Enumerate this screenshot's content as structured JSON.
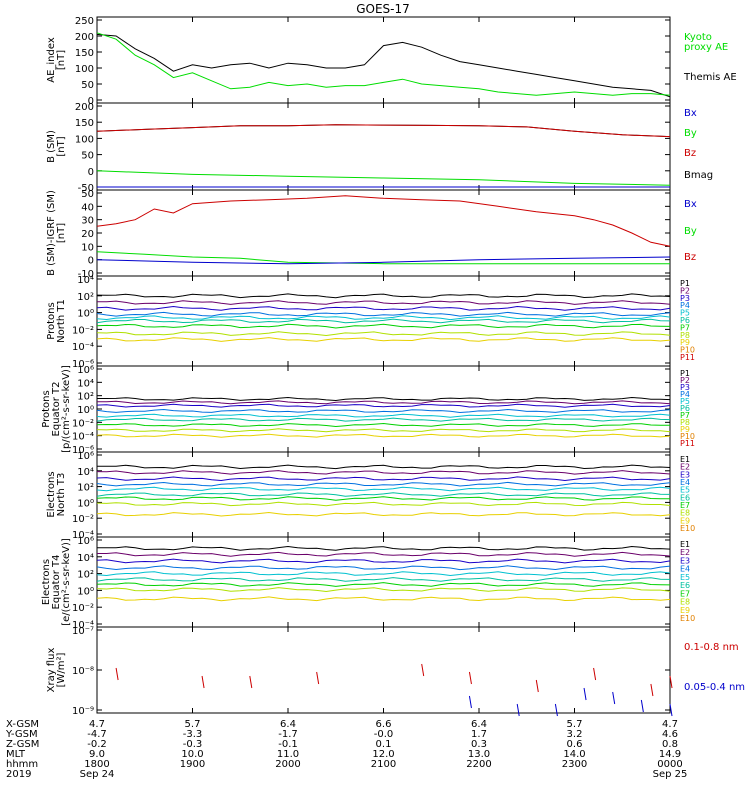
{
  "title": "GOES-17",
  "colors": {
    "black": "#000000",
    "green": "#00dd00",
    "red": "#cc0000",
    "blue": "#0000cc",
    "P": [
      "#000000",
      "#6a006a",
      "#1a00c8",
      "#0070e0",
      "#00c0d0",
      "#00c0a0",
      "#00d000",
      "#b0e000",
      "#e8d000",
      "#e08000",
      "#d00000",
      "#b00000"
    ],
    "E": [
      "#000000",
      "#6a006a",
      "#1a00c8",
      "#0070e0",
      "#00c0d0",
      "#00c0a0",
      "#00d000",
      "#b0e000",
      "#e8d000",
      "#e08000",
      "#d00000",
      "#b00000"
    ]
  },
  "panels": [
    {
      "id": "ae",
      "ylabel": [
        "AE_index",
        "[nT]"
      ],
      "ylim": [
        0,
        250
      ],
      "ticks": [
        "250",
        "200",
        "150",
        "100",
        "50",
        "0"
      ],
      "legend": [
        {
          "text": "Kyoto",
          "color": "#00dd00"
        },
        {
          "text": "proxy AE",
          "color": "#00dd00"
        },
        {
          "text": "Themis AE",
          "color": "#000000"
        }
      ]
    },
    {
      "id": "bsm",
      "ylabel": [
        "B (SM)",
        "[nT]"
      ],
      "ylim": [
        -25,
        200
      ],
      "ticks": [
        "200",
        "150",
        "100",
        "50",
        "0",
        "-50"
      ],
      "legend": [
        {
          "text": "Bx",
          "color": "#0000cc"
        },
        {
          "text": "By",
          "color": "#00dd00"
        },
        {
          "text": "Bz",
          "color": "#cc0000"
        },
        {
          "text": "Bmag",
          "color": "#000000"
        }
      ]
    },
    {
      "id": "bigrf",
      "ylabel": [
        "B (SM)-IGRF (SM)",
        "[nT]"
      ],
      "ylim": [
        -10,
        50
      ],
      "ticks": [
        "50",
        "40",
        "30",
        "20",
        "10",
        "0",
        "-10"
      ],
      "legend": [
        {
          "text": "Bx",
          "color": "#0000cc"
        },
        {
          "text": "By",
          "color": "#00dd00"
        },
        {
          "text": "Bz",
          "color": "#cc0000"
        }
      ]
    },
    {
      "id": "pnt1",
      "ylabel": [
        "Protons",
        "North T1"
      ],
      "ylim": [
        -6,
        4
      ],
      "ticks": [
        "10⁴",
        "10²",
        "10⁰",
        "10⁻²",
        "10⁻⁴",
        "10⁻⁶"
      ],
      "legend": [
        "P1",
        "P2",
        "P3",
        "P4",
        "P5",
        "P6",
        "P7",
        "P8",
        "P9",
        "P10",
        "P11"
      ]
    },
    {
      "id": "pet2",
      "ylabel": [
        "Protons",
        "Equator T2",
        "[p/(cm²-s-sr-keV)]"
      ],
      "ylim": [
        -6,
        6
      ],
      "ticks": [
        "10⁶",
        "10⁴",
        "10²",
        "10⁰",
        "10⁻²",
        "10⁻⁴",
        "10⁻⁶"
      ],
      "legend": [
        "P1",
        "P2",
        "P3",
        "P4",
        "P5",
        "P6",
        "P7",
        "P8",
        "P9",
        "P10",
        "P11"
      ]
    },
    {
      "id": "ent3",
      "ylabel": [
        "Electrons",
        "North T3"
      ],
      "ylim": [
        -4,
        6
      ],
      "ticks": [
        "10⁶",
        "10⁴",
        "10²",
        "10⁰",
        "10⁻²",
        "10⁻⁴"
      ],
      "legend": [
        "E1",
        "E2",
        "E3",
        "E4",
        "E5",
        "E6",
        "E7",
        "E8",
        "E9",
        "E10"
      ]
    },
    {
      "id": "eet4",
      "ylabel": [
        "Electrons",
        "Equator T4",
        "[e/(cm²-s-sr-keV)]"
      ],
      "ylim": [
        -4,
        6
      ],
      "ticks": [
        "10⁶",
        "10⁴",
        "10²",
        "10⁰",
        "10⁻²",
        "10⁻⁴"
      ],
      "legend": [
        "E1",
        "E2",
        "E3",
        "E4",
        "E5",
        "E6",
        "E7",
        "E8",
        "E9",
        "E10"
      ]
    },
    {
      "id": "xray",
      "ylabel": [
        "Xray flux",
        "[W/m²]"
      ],
      "ylim": [
        -9,
        -7
      ],
      "ticks": [
        "10⁻⁷",
        "10⁻⁸",
        "10⁻⁹"
      ],
      "legend": [
        {
          "text": "0.1-0.8 nm",
          "color": "#cc0000"
        },
        {
          "text": "0.05-0.4 nm",
          "color": "#0000cc"
        }
      ]
    }
  ],
  "footer": {
    "row_labels": [
      "X-GSM",
      "Y-GSM",
      "Z-GSM",
      "MLT",
      "hhmm",
      "2019"
    ],
    "columns": [
      [
        "4.7",
        "-4.7",
        "-0.2",
        "9.0",
        "1800",
        "Sep 24"
      ],
      [
        "5.7",
        "-3.3",
        "-0.3",
        "10.0",
        "1900",
        ""
      ],
      [
        "6.4",
        "-1.7",
        "-0.1",
        "11.0",
        "2000",
        ""
      ],
      [
        "6.6",
        "-0.0",
        "0.1",
        "12.0",
        "2100",
        ""
      ],
      [
        "6.4",
        "1.7",
        "0.3",
        "13.0",
        "2200",
        ""
      ],
      [
        "5.7",
        "3.2",
        "0.6",
        "14.0",
        "2300",
        ""
      ],
      [
        "4.7",
        "4.6",
        "0.8",
        "14.9",
        "0000",
        "Sep 25"
      ]
    ]
  },
  "chart_data": {
    "type": "line",
    "x_hours": [
      18,
      19,
      20,
      21,
      22,
      23,
      24
    ],
    "x_tick_labels": [
      "1800",
      "1900",
      "2000",
      "2100",
      "2200",
      "2300",
      "0000"
    ],
    "ae": {
      "themis": [
        [
          18.0,
          205
        ],
        [
          18.2,
          200
        ],
        [
          18.4,
          160
        ],
        [
          18.6,
          130
        ],
        [
          18.8,
          90
        ],
        [
          19.0,
          110
        ],
        [
          19.2,
          100
        ],
        [
          19.4,
          110
        ],
        [
          19.6,
          115
        ],
        [
          19.8,
          100
        ],
        [
          20.0,
          115
        ],
        [
          20.2,
          110
        ],
        [
          20.4,
          100
        ],
        [
          20.6,
          100
        ],
        [
          20.8,
          110
        ],
        [
          21.0,
          170
        ],
        [
          21.2,
          180
        ],
        [
          21.4,
          165
        ],
        [
          21.6,
          140
        ],
        [
          21.8,
          120
        ],
        [
          22.0,
          110
        ],
        [
          22.2,
          100
        ],
        [
          22.4,
          90
        ],
        [
          22.6,
          80
        ],
        [
          22.8,
          70
        ],
        [
          23.0,
          60
        ],
        [
          23.2,
          50
        ],
        [
          23.4,
          40
        ],
        [
          23.6,
          35
        ],
        [
          23.8,
          30
        ],
        [
          24.0,
          10
        ]
      ],
      "kyoto": [
        [
          18.0,
          210
        ],
        [
          18.2,
          190
        ],
        [
          18.4,
          140
        ],
        [
          18.6,
          110
        ],
        [
          18.8,
          70
        ],
        [
          19.0,
          85
        ],
        [
          19.2,
          60
        ],
        [
          19.4,
          35
        ],
        [
          19.6,
          40
        ],
        [
          19.8,
          55
        ],
        [
          20.0,
          45
        ],
        [
          20.2,
          50
        ],
        [
          20.4,
          40
        ],
        [
          20.6,
          45
        ],
        [
          20.8,
          45
        ],
        [
          21.0,
          55
        ],
        [
          21.2,
          65
        ],
        [
          21.4,
          50
        ],
        [
          21.6,
          45
        ],
        [
          21.8,
          40
        ],
        [
          22.0,
          35
        ],
        [
          22.2,
          25
        ],
        [
          22.4,
          20
        ],
        [
          22.6,
          15
        ],
        [
          22.8,
          20
        ],
        [
          23.0,
          25
        ],
        [
          23.2,
          20
        ],
        [
          23.4,
          15
        ],
        [
          23.6,
          20
        ],
        [
          23.8,
          20
        ],
        [
          24.0,
          15
        ]
      ]
    },
    "b_sm": {
      "Bx": [
        [
          18,
          -25
        ],
        [
          24,
          -25
        ]
      ],
      "By": [
        [
          18,
          20
        ],
        [
          19,
          10
        ],
        [
          20,
          5
        ],
        [
          21,
          0
        ],
        [
          22,
          -5
        ],
        [
          23,
          -15
        ],
        [
          24,
          -20
        ]
      ],
      "Bz": [
        [
          18,
          130
        ],
        [
          18.5,
          135
        ],
        [
          19,
          140
        ],
        [
          19.5,
          145
        ],
        [
          20,
          145
        ],
        [
          20.5,
          148
        ],
        [
          21,
          147
        ],
        [
          21.5,
          146
        ],
        [
          22,
          145
        ],
        [
          22.5,
          142
        ],
        [
          23,
          130
        ],
        [
          23.5,
          120
        ],
        [
          24,
          115
        ]
      ],
      "Bmag": [
        [
          18,
          130
        ],
        [
          18.5,
          135
        ],
        [
          19,
          140
        ],
        [
          19.5,
          145
        ],
        [
          20,
          145
        ],
        [
          20.5,
          148
        ],
        [
          21,
          147
        ],
        [
          21.5,
          146
        ],
        [
          22,
          145
        ],
        [
          22.5,
          142
        ],
        [
          23,
          130
        ],
        [
          23.5,
          120
        ],
        [
          24,
          115
        ]
      ]
    },
    "b_igrf": {
      "Bx": [
        [
          18,
          0
        ],
        [
          19,
          -2
        ],
        [
          20,
          -3
        ],
        [
          21,
          -2
        ],
        [
          22,
          0
        ],
        [
          23,
          1
        ],
        [
          24,
          2
        ]
      ],
      "By": [
        [
          18,
          6
        ],
        [
          18.5,
          4
        ],
        [
          19,
          2
        ],
        [
          19.5,
          1
        ],
        [
          20,
          -2
        ],
        [
          21,
          -3
        ],
        [
          22,
          -3
        ],
        [
          23,
          -3
        ],
        [
          24,
          -3
        ]
      ],
      "Bz": [
        [
          18,
          25
        ],
        [
          18.2,
          27
        ],
        [
          18.4,
          30
        ],
        [
          18.6,
          38
        ],
        [
          18.8,
          35
        ],
        [
          19.0,
          42
        ],
        [
          19.4,
          44
        ],
        [
          19.8,
          45
        ],
        [
          20.2,
          46
        ],
        [
          20.6,
          48
        ],
        [
          21.0,
          46
        ],
        [
          21.4,
          45
        ],
        [
          21.8,
          44
        ],
        [
          22.2,
          40
        ],
        [
          22.6,
          36
        ],
        [
          23.0,
          33
        ],
        [
          23.2,
          30
        ],
        [
          23.4,
          26
        ],
        [
          23.6,
          20
        ],
        [
          23.8,
          13
        ],
        [
          24.0,
          10
        ]
      ]
    },
    "protons_north_t1_log10": [
      2.0,
      1.2,
      0.5,
      -0.2,
      -0.6,
      -1.0,
      -1.6,
      -2.5,
      -3.2
    ],
    "protons_equator_t2_log10": [
      1.5,
      1.0,
      0.5,
      -0.3,
      -1.0,
      -1.6,
      -2.4,
      -3.2,
      -4.0
    ],
    "electrons_north_t3_log10": [
      4.5,
      3.8,
      3.0,
      2.3,
      1.7,
      1.0,
      0.5,
      -0.2,
      -1.5
    ],
    "electrons_equator_t4_log10": [
      5.0,
      4.3,
      3.5,
      2.7,
      2.0,
      1.3,
      0.7,
      0.1,
      -1.0
    ],
    "xray_log10": {
      "long": [
        [
          18.2,
          -8.1
        ],
        [
          19.1,
          -8.3
        ],
        [
          19.6,
          -8.3
        ],
        [
          20.3,
          -8.2
        ],
        [
          21.4,
          -8.0
        ],
        [
          21.9,
          -8.2
        ],
        [
          22.6,
          -8.4
        ],
        [
          23.2,
          -8.1
        ],
        [
          23.8,
          -8.5
        ],
        [
          24.0,
          -8.3
        ]
      ],
      "short": [
        [
          21.9,
          -8.8
        ],
        [
          22.4,
          -9.0
        ],
        [
          22.8,
          -9.0
        ],
        [
          23.1,
          -8.6
        ],
        [
          23.4,
          -8.7
        ],
        [
          23.7,
          -8.9
        ],
        [
          24.0,
          -9.0
        ]
      ]
    }
  }
}
